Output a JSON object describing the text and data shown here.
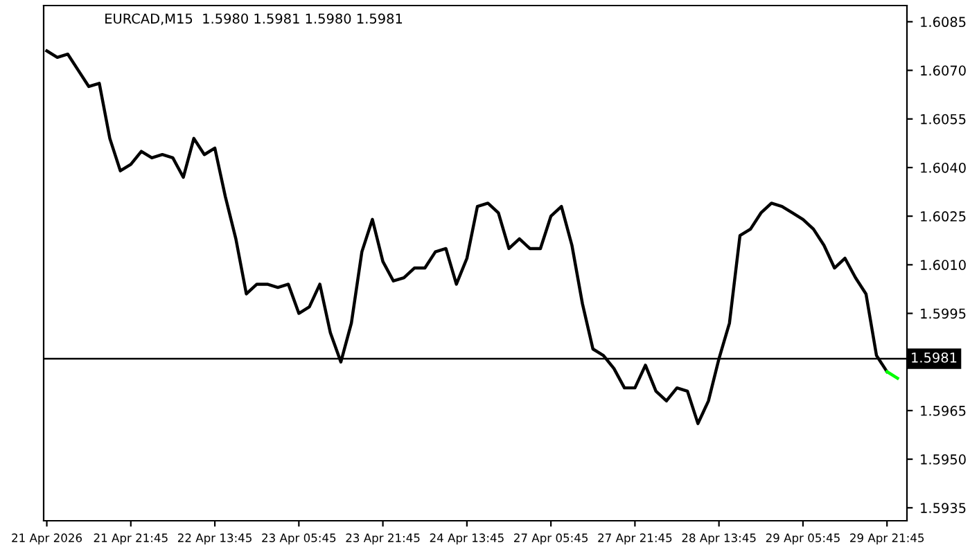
{
  "chart_data": {
    "type": "line",
    "title": "EURCAD,M15  1.5980 1.5981 1.5980 1.5981",
    "categories": [
      "21 Apr 2026",
      null,
      null,
      null,
      null,
      null,
      null,
      null,
      "21 Apr 21:45",
      null,
      null,
      null,
      null,
      null,
      null,
      null,
      "22 Apr 13:45",
      null,
      null,
      null,
      null,
      null,
      null,
      null,
      "23 Apr 05:45",
      null,
      null,
      null,
      null,
      null,
      null,
      null,
      "23 Apr 21:45",
      null,
      null,
      null,
      null,
      null,
      null,
      null,
      "24 Apr 13:45",
      null,
      null,
      null,
      null,
      null,
      null,
      null,
      "27 Apr 05:45",
      null,
      null,
      null,
      null,
      null,
      null,
      null,
      "27 Apr 21:45",
      null,
      null,
      null,
      null,
      null,
      null,
      null,
      "28 Apr 13:45",
      null,
      null,
      null,
      null,
      null,
      null,
      null,
      "29 Apr 05:45",
      null,
      null,
      null,
      null,
      null,
      null,
      null,
      "29 Apr 21:45",
      null
    ],
    "series": [
      {
        "color": "#000000",
        "values": [
          1.6076,
          1.6074,
          1.6075,
          1.607,
          1.6065,
          1.6066,
          1.6049,
          1.6039,
          1.6041,
          1.6045,
          1.6043,
          1.6044,
          1.6043,
          1.6037,
          1.6049,
          1.6044,
          1.6046,
          1.6031,
          1.6018,
          1.6001,
          1.6004,
          1.6004,
          1.6003,
          1.6004,
          1.5995,
          1.5997,
          1.6004,
          1.5989,
          1.598,
          1.5992,
          1.6014,
          1.6024,
          1.6011,
          1.6005,
          1.6006,
          1.6009,
          1.6009,
          1.6014,
          1.6015,
          1.6004,
          1.6012,
          1.6028,
          1.6029,
          1.6026,
          1.6015,
          1.6018,
          1.6015,
          1.6015,
          1.6025,
          1.6028,
          1.6016,
          1.5998,
          1.5984,
          1.5982,
          1.5978,
          1.5972,
          1.5972,
          1.5979,
          1.5971,
          1.5968,
          1.5972,
          1.5971,
          1.5961,
          1.5968,
          1.5981,
          1.5992,
          1.6019,
          1.6021,
          1.6026,
          1.6029,
          1.6028,
          1.6026,
          1.6024,
          1.6021,
          1.6016,
          1.6009,
          1.6012,
          1.6006,
          1.6001,
          1.5982,
          1.5977,
          null
        ]
      },
      {
        "color": "#00ff00",
        "values": [
          null,
          null,
          null,
          null,
          null,
          null,
          null,
          null,
          null,
          null,
          null,
          null,
          null,
          null,
          null,
          null,
          null,
          null,
          null,
          null,
          null,
          null,
          null,
          null,
          null,
          null,
          null,
          null,
          null,
          null,
          null,
          null,
          null,
          null,
          null,
          null,
          null,
          null,
          null,
          null,
          null,
          null,
          null,
          null,
          null,
          null,
          null,
          null,
          null,
          null,
          null,
          null,
          null,
          null,
          null,
          null,
          null,
          null,
          null,
          null,
          null,
          null,
          null,
          null,
          null,
          null,
          null,
          null,
          null,
          null,
          null,
          null,
          null,
          null,
          null,
          null,
          null,
          null,
          null,
          null,
          1.5977,
          1.5975
        ]
      }
    ],
    "ylim": [
      1.5931,
      1.609
    ],
    "yticks": [
      1.5935,
      {
        "value": 1.595,
        "label": "1.5950"
      },
      1.5965,
      1.5995,
      {
        "value": 1.601,
        "label": "1.6010"
      },
      1.6025,
      {
        "value": 1.604,
        "label": "1.6040"
      },
      1.6055,
      {
        "value": 1.607,
        "label": "1.6070"
      },
      1.6085
    ],
    "ref_lines": [
      {
        "axis": "y",
        "value": 1.5981,
        "label": "1.5981",
        "color": "#000000"
      }
    ],
    "grid": false
  }
}
